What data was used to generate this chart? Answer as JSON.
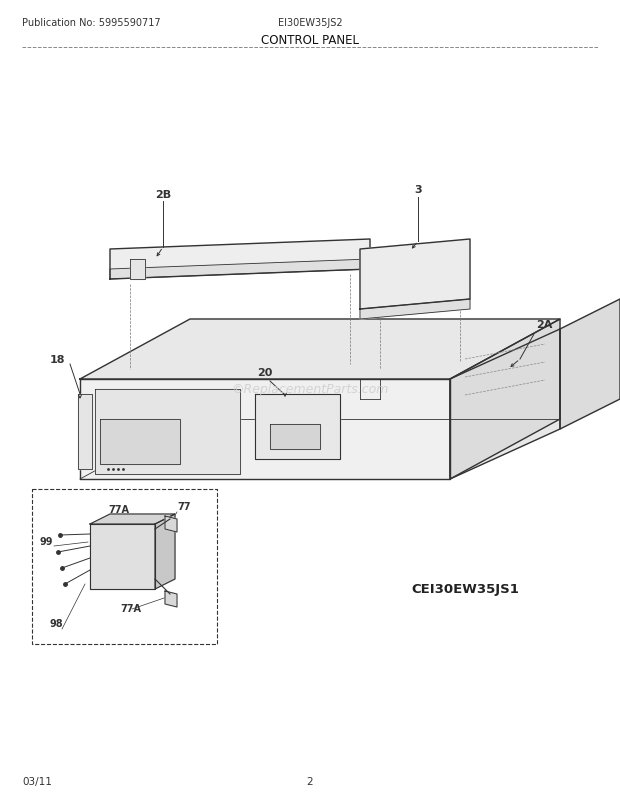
{
  "pub_no": "Publication No: 5995590717",
  "model": "EI30EW35JS2",
  "title": "CONTROL PANEL",
  "date": "03/11",
  "page": "2",
  "watermark": "©ReplacementParts.com",
  "model2": "CEI30EW35JS1",
  "bg_color": "#ffffff",
  "line_color": "#333333",
  "lw_main": 1.0,
  "lw_thin": 0.6
}
